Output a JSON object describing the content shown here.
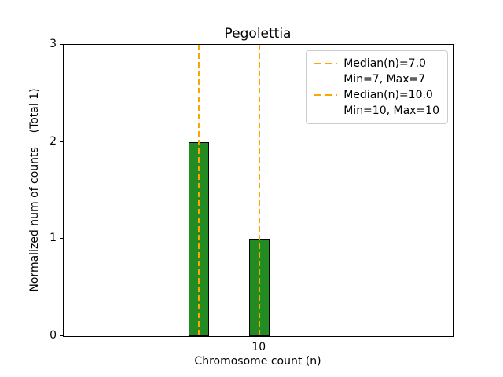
{
  "chart_data": {
    "type": "bar",
    "title": "Pegolettia",
    "xlabel": "Chromosome count (n)",
    "ylabel": "Normalized num of counts    (Total 1)",
    "bars": [
      {
        "x": 7,
        "height": 2
      },
      {
        "x": 10,
        "height": 1
      }
    ],
    "bar_color": "#228B22",
    "bar_edge_color": "#000000",
    "bar_width": 1.0,
    "vlines": [
      {
        "x": 7,
        "color": "#FFA500",
        "style": "dashed"
      },
      {
        "x": 10,
        "color": "#FFA500",
        "style": "dashed"
      }
    ],
    "xlim": [
      0.3,
      19.6
    ],
    "ylim": [
      0,
      3
    ],
    "xticks": [
      {
        "value": 10,
        "label": "10"
      }
    ],
    "yticks": [
      {
        "value": 0,
        "label": "0"
      },
      {
        "value": 1,
        "label": "1"
      },
      {
        "value": 2,
        "label": "2"
      },
      {
        "value": 3,
        "label": "3"
      }
    ],
    "grid": false,
    "legend": {
      "position": "upper right",
      "line_color": "#FFA500",
      "entries": [
        {
          "sample": "dashed-line",
          "color": "#FFA500",
          "lines": [
            "Median(n)=7.0",
            "Min=7, Max=7"
          ]
        },
        {
          "sample": "dashed-line",
          "color": "#FFA500",
          "lines": [
            "Median(n)=10.0",
            "Min=10, Max=10"
          ]
        }
      ]
    }
  }
}
